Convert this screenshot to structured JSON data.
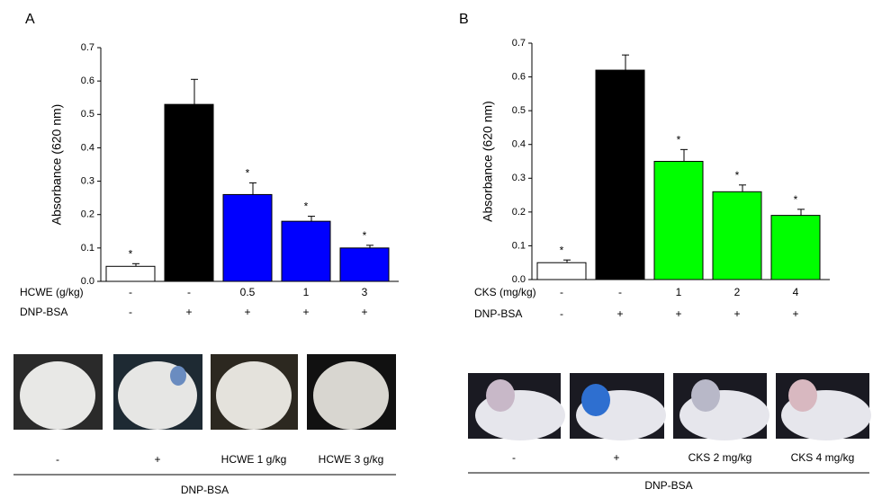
{
  "chart_data": [
    {
      "type": "bar",
      "panel_label": "A",
      "y_label": "Absorbance (620 nm)",
      "ylim": [
        0,
        0.7
      ],
      "yticks": [
        {
          "value": 0,
          "label": "0.0"
        },
        0.1,
        0.2,
        0.3,
        0.4,
        0.5,
        0.6,
        0.7
      ],
      "values": [
        0.045,
        0.53,
        0.26,
        0.18,
        0.1
      ],
      "errors": [
        0.008,
        0.075,
        0.035,
        0.015,
        0.008
      ],
      "colors": [
        "#ffffff",
        "#000000",
        "#0000ff",
        "#0000ff",
        "#0000ff"
      ],
      "annotations": [
        "*",
        null,
        "*",
        "*",
        "*"
      ],
      "treatment_rows": [
        {
          "name": "HCWE (g/kg)",
          "labels": [
            "-",
            "-",
            "0.5",
            "1",
            "3"
          ]
        },
        {
          "name": "DNP-BSA",
          "labels": [
            "-",
            "+",
            "+",
            "+",
            "+"
          ]
        }
      ],
      "photo_captions": [
        "-",
        "+",
        "HCWE 1 g/kg",
        "HCWE 3 g/kg"
      ],
      "photo_group_label": "DNP-BSA"
    },
    {
      "type": "bar",
      "panel_label": "B",
      "y_label": "Absorbance (620 nm)",
      "ylim": [
        0,
        0.7
      ],
      "yticks": [
        {
          "value": 0,
          "label": "0.0"
        },
        0.1,
        0.2,
        0.3,
        0.4,
        0.5,
        0.6,
        0.7
      ],
      "values": [
        0.05,
        0.62,
        0.35,
        0.26,
        0.19
      ],
      "errors": [
        0.008,
        0.045,
        0.035,
        0.02,
        0.018
      ],
      "colors": [
        "#ffffff",
        "#000000",
        "#00ff00",
        "#00ff00",
        "#00ff00"
      ],
      "annotations": [
        "*",
        null,
        "*",
        "*",
        "*"
      ],
      "treatment_rows": [
        {
          "name": "CKS (mg/kg)",
          "labels": [
            "-",
            "-",
            "1",
            "2",
            "4"
          ]
        },
        {
          "name": "DNP-BSA",
          "labels": [
            "-",
            "+",
            "+",
            "+",
            "+"
          ]
        }
      ],
      "photo_captions": [
        "-",
        "+",
        "CKS 2 mg/kg",
        "CKS 4 mg/kg"
      ],
      "photo_group_label": "DNP-BSA"
    }
  ]
}
